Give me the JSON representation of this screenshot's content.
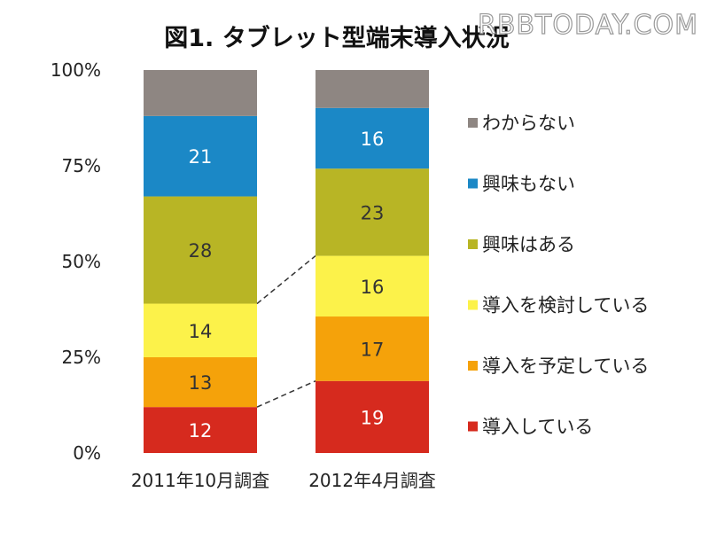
{
  "chart_data": {
    "type": "bar",
    "stacked": true,
    "percent_stacked": true,
    "title": "図1. タブレット型端末導入状況",
    "watermark": "RBBTODAY.COM",
    "categories": [
      "2011年10月調査",
      "2012年4月調査"
    ],
    "y_ticks": [
      "0%",
      "25%",
      "50%",
      "75%",
      "100%"
    ],
    "ylim": [
      0,
      100
    ],
    "series": [
      {
        "name": "導入している",
        "values": [
          12,
          19
        ],
        "labels": [
          "12",
          "19"
        ],
        "color": "#d62a1e",
        "label_color": "#ffffff"
      },
      {
        "name": "導入を予定している",
        "values": [
          13,
          17
        ],
        "labels": [
          "13",
          "17"
        ],
        "color": "#f5a20a",
        "label_color": "#333333"
      },
      {
        "name": "導入を検討している",
        "values": [
          14,
          16
        ],
        "labels": [
          "14",
          "16"
        ],
        "color": "#fcf24a",
        "label_color": "#333333"
      },
      {
        "name": "興味はある",
        "values": [
          28,
          23
        ],
        "labels": [
          "28",
          "23"
        ],
        "color": "#b8b525",
        "label_color": "#333333"
      },
      {
        "name": "興味もない",
        "values": [
          21,
          16
        ],
        "labels": [
          "21",
          "16"
        ],
        "color": "#1b88c6",
        "label_color": "#ffffff"
      },
      {
        "name": "わからない",
        "values": [
          12,
          10
        ],
        "labels": [],
        "color": "#8e8682",
        "label_color": "#ffffff"
      }
    ],
    "legend_order": [
      "わからない",
      "興味もない",
      "興味はある",
      "導入を検討している",
      "導入を予定している",
      "導入している"
    ],
    "legend_position": "right",
    "connector_lines": "dashed lines link the top of 導入している and 導入を検討している between the two bars"
  }
}
